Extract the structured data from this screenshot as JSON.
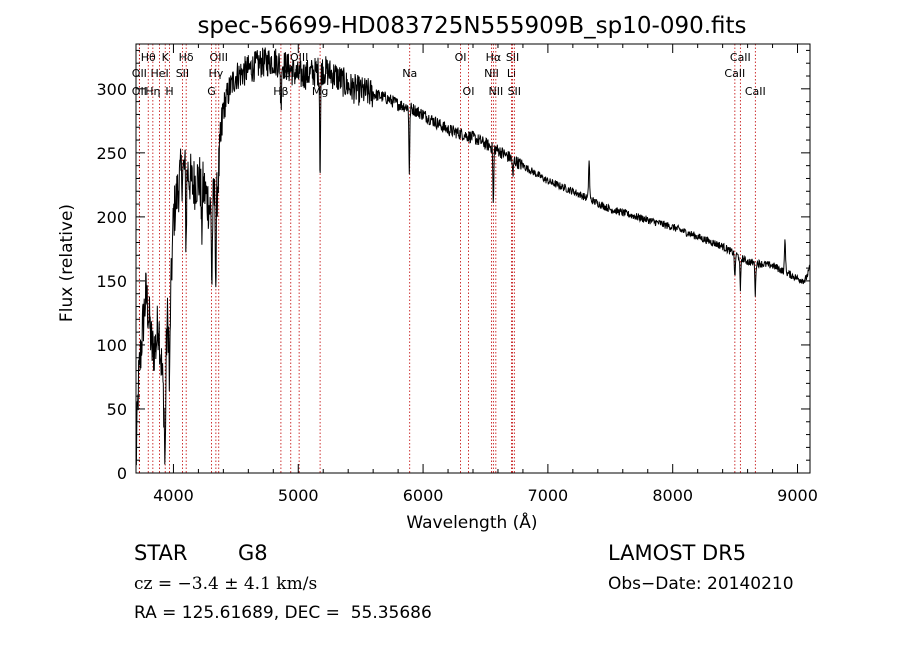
{
  "chart_data": {
    "type": "line",
    "title": "spec-56699-HD083725N555909B_sp10-090.fits",
    "xlabel": "Wavelength (Å)",
    "ylabel": "Flux (relative)",
    "xlim": [
      3700,
      9100
    ],
    "ylim": [
      0,
      335
    ],
    "x_ticks": [
      4000,
      5000,
      6000,
      7000,
      8000,
      9000
    ],
    "y_ticks": [
      0,
      50,
      100,
      150,
      200,
      250,
      300
    ],
    "grid": false,
    "line_color": "#000000",
    "marker_color": "#c00000",
    "continuum": [
      [
        3700,
        5
      ],
      [
        3720,
        70
      ],
      [
        3750,
        110
      ],
      [
        3780,
        140
      ],
      [
        3800,
        125
      ],
      [
        3830,
        95
      ],
      [
        3860,
        100
      ],
      [
        3880,
        120
      ],
      [
        3900,
        90
      ],
      [
        3930,
        45
      ],
      [
        3950,
        120
      ],
      [
        3970,
        110
      ],
      [
        4000,
        200
      ],
      [
        4050,
        230
      ],
      [
        4100,
        240
      ],
      [
        4150,
        225
      ],
      [
        4200,
        230
      ],
      [
        4250,
        220
      ],
      [
        4300,
        205
      ],
      [
        4350,
        220
      ],
      [
        4400,
        285
      ],
      [
        4450,
        300
      ],
      [
        4500,
        310
      ],
      [
        4600,
        315
      ],
      [
        4700,
        320
      ],
      [
        4800,
        322
      ],
      [
        4900,
        318
      ],
      [
        5000,
        310
      ],
      [
        5100,
        312
      ],
      [
        5200,
        315
      ],
      [
        5300,
        310
      ],
      [
        5400,
        302
      ],
      [
        5500,
        298
      ],
      [
        5600,
        296
      ],
      [
        5700,
        293
      ],
      [
        5800,
        288
      ],
      [
        5900,
        285
      ],
      [
        6000,
        280
      ],
      [
        6200,
        268
      ],
      [
        6400,
        262
      ],
      [
        6600,
        252
      ],
      [
        6800,
        240
      ],
      [
        7000,
        228
      ],
      [
        7200,
        220
      ],
      [
        7500,
        206
      ],
      [
        8000,
        192
      ],
      [
        8400,
        177
      ],
      [
        8600,
        165
      ],
      [
        8800,
        162
      ],
      [
        9000,
        152
      ],
      [
        9060,
        150
      ],
      [
        9100,
        160
      ]
    ],
    "absorption_features": [
      [
        3933,
        50
      ],
      [
        3968,
        45
      ],
      [
        4101,
        60
      ],
      [
        4226,
        40
      ],
      [
        4308,
        60
      ],
      [
        4340,
        70
      ],
      [
        4861,
        35
      ],
      [
        5175,
        80
      ],
      [
        5890,
        50
      ],
      [
        6563,
        45
      ],
      [
        6720,
        15
      ],
      [
        8498,
        20
      ],
      [
        8542,
        28
      ],
      [
        8662,
        25
      ]
    ],
    "emission_features": [
      [
        7330,
        30
      ],
      [
        8900,
        25
      ]
    ],
    "line_markers": [
      {
        "label": "Hθ",
        "x": 3798,
        "row": 0
      },
      {
        "label": "K",
        "x": 3934,
        "row": 0
      },
      {
        "label": "Hδ",
        "x": 4102,
        "row": 0
      },
      {
        "label": "OIII",
        "x": 4363,
        "row": 0
      },
      {
        "label": "OIII",
        "x": 5007,
        "row": 0
      },
      {
        "label": "OI",
        "x": 6300,
        "row": 0
      },
      {
        "label": "Hα",
        "x": 6563,
        "row": 0
      },
      {
        "label": "SII",
        "x": 6717,
        "row": 0
      },
      {
        "label": "CaII",
        "x": 8542,
        "row": 0
      },
      {
        "label": "OII",
        "x": 3727,
        "row": 1
      },
      {
        "label": "HeI",
        "x": 3889,
        "row": 1
      },
      {
        "label": "SII",
        "x": 4072,
        "row": 1
      },
      {
        "label": "Hγ",
        "x": 4340,
        "row": 1
      },
      {
        "label": "SII",
        "x": 4940,
        "row": 1
      },
      {
        "label": "Na",
        "x": 5893,
        "row": 1
      },
      {
        "label": "NII",
        "x": 6548,
        "row": 1
      },
      {
        "label": "Li",
        "x": 6708,
        "row": 1
      },
      {
        "label": "CaII",
        "x": 8498,
        "row": 1
      },
      {
        "label": "OII",
        "x": 3727,
        "row": 2
      },
      {
        "label": "Hη",
        "x": 3835,
        "row": 2
      },
      {
        "label": "H",
        "x": 3969,
        "row": 2
      },
      {
        "label": "G",
        "x": 4305,
        "row": 2
      },
      {
        "label": "Hβ",
        "x": 4861,
        "row": 2
      },
      {
        "label": "Mg",
        "x": 5175,
        "row": 2
      },
      {
        "label": "OI",
        "x": 6364,
        "row": 2
      },
      {
        "label": "NII",
        "x": 6583,
        "row": 2
      },
      {
        "label": "SII",
        "x": 6731,
        "row": 2
      },
      {
        "label": "CaII",
        "x": 8662,
        "row": 2
      }
    ]
  },
  "info": {
    "object_type": "STAR",
    "subclass": "G8",
    "survey": "LAMOST DR5",
    "cz_text": "cz = −3.4 ± 4.1 km/s",
    "obs_date": "Obs−Date: 20140210",
    "coords": "RA = 125.61689, DEC =  55.35686"
  }
}
